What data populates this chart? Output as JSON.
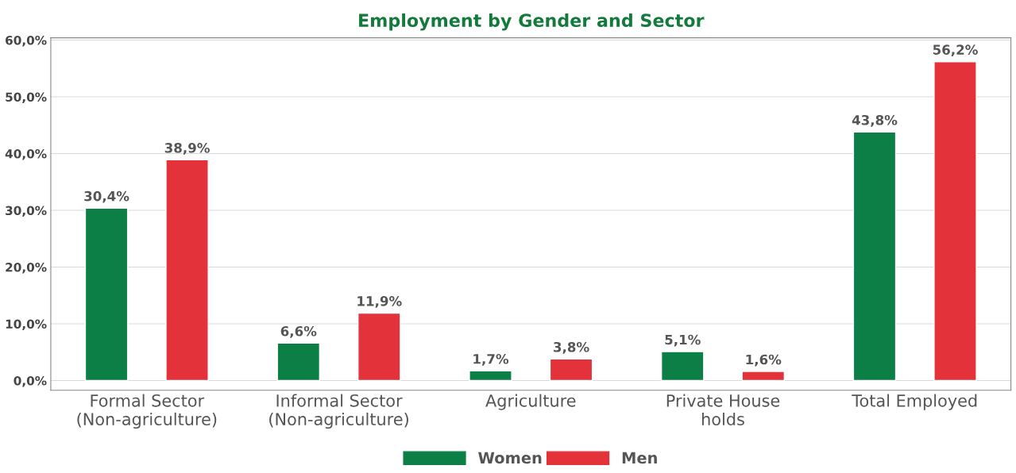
{
  "chart_data": {
    "type": "bar",
    "title": "Employment by Gender and Sector",
    "categories": [
      "Formal Sector\n(Non-agriculture)",
      "Informal Sector\n(Non-agriculture)",
      "Agriculture",
      "Private House\nholds",
      "Total Employed"
    ],
    "series": [
      {
        "name": "Women",
        "color": "#0b7f45",
        "values": [
          30.4,
          6.6,
          1.7,
          5.1,
          43.8
        ],
        "value_labels": [
          "30,4%",
          "6,6%",
          "1,7%",
          "5,1%",
          "43,8%"
        ]
      },
      {
        "name": "Men",
        "color": "#e3323a",
        "values": [
          38.9,
          11.9,
          3.8,
          1.6,
          56.2
        ],
        "value_labels": [
          "38,9%",
          "11,9%",
          "3,8%",
          "1,6%",
          "56,2%"
        ]
      }
    ],
    "ylim": [
      -1.7,
      60.4
    ],
    "yticks": [
      {
        "value": 0,
        "label": "0,0%"
      },
      {
        "value": 10,
        "label": "10,0%"
      },
      {
        "value": 20,
        "label": "20,0%"
      },
      {
        "value": 30,
        "label": "30,0%"
      },
      {
        "value": 40,
        "label": "40,0%"
      },
      {
        "value": 50,
        "label": "50,0%"
      },
      {
        "value": 60,
        "label": "60,0%"
      }
    ],
    "grid": "y",
    "legend": "bottom"
  }
}
